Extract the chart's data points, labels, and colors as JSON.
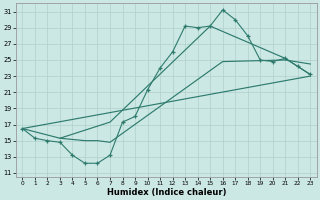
{
  "xlabel": "Humidex (Indice chaleur)",
  "bg_color": "#cce8e4",
  "grid_color": "#b0d0cc",
  "line_color": "#2e7b6e",
  "xlim": [
    -0.5,
    23.5
  ],
  "ylim": [
    10.5,
    32
  ],
  "yticks": [
    11,
    13,
    15,
    17,
    19,
    21,
    23,
    25,
    27,
    29,
    31
  ],
  "xticks": [
    0,
    1,
    2,
    3,
    4,
    5,
    6,
    7,
    8,
    9,
    10,
    11,
    12,
    13,
    14,
    15,
    16,
    17,
    18,
    19,
    20,
    21,
    22,
    23
  ],
  "line1_x": [
    0,
    1,
    2,
    3,
    4,
    5,
    6,
    7,
    8,
    9,
    10,
    11,
    12,
    13,
    14,
    15,
    16,
    17,
    18,
    19,
    20,
    21,
    22,
    23
  ],
  "line1_y": [
    16.5,
    15.3,
    15.0,
    14.8,
    13.2,
    12.2,
    12.2,
    13.2,
    17.3,
    18.0,
    21.3,
    24.0,
    26.0,
    29.2,
    29.0,
    29.2,
    31.2,
    30.0,
    28.0,
    25.0,
    24.8,
    25.2,
    24.2,
    23.2
  ],
  "line2_x": [
    0,
    3,
    7,
    15,
    21,
    23
  ],
  "line2_y": [
    16.5,
    15.3,
    17.3,
    29.2,
    25.2,
    23.2
  ],
  "line3_x": [
    3,
    5,
    6,
    7,
    16,
    21,
    23
  ],
  "line3_y": [
    15.3,
    15.0,
    15.0,
    14.8,
    24.8,
    25.0,
    24.5
  ],
  "line4_x": [
    0,
    23
  ],
  "line4_y": [
    16.5,
    23.0
  ]
}
